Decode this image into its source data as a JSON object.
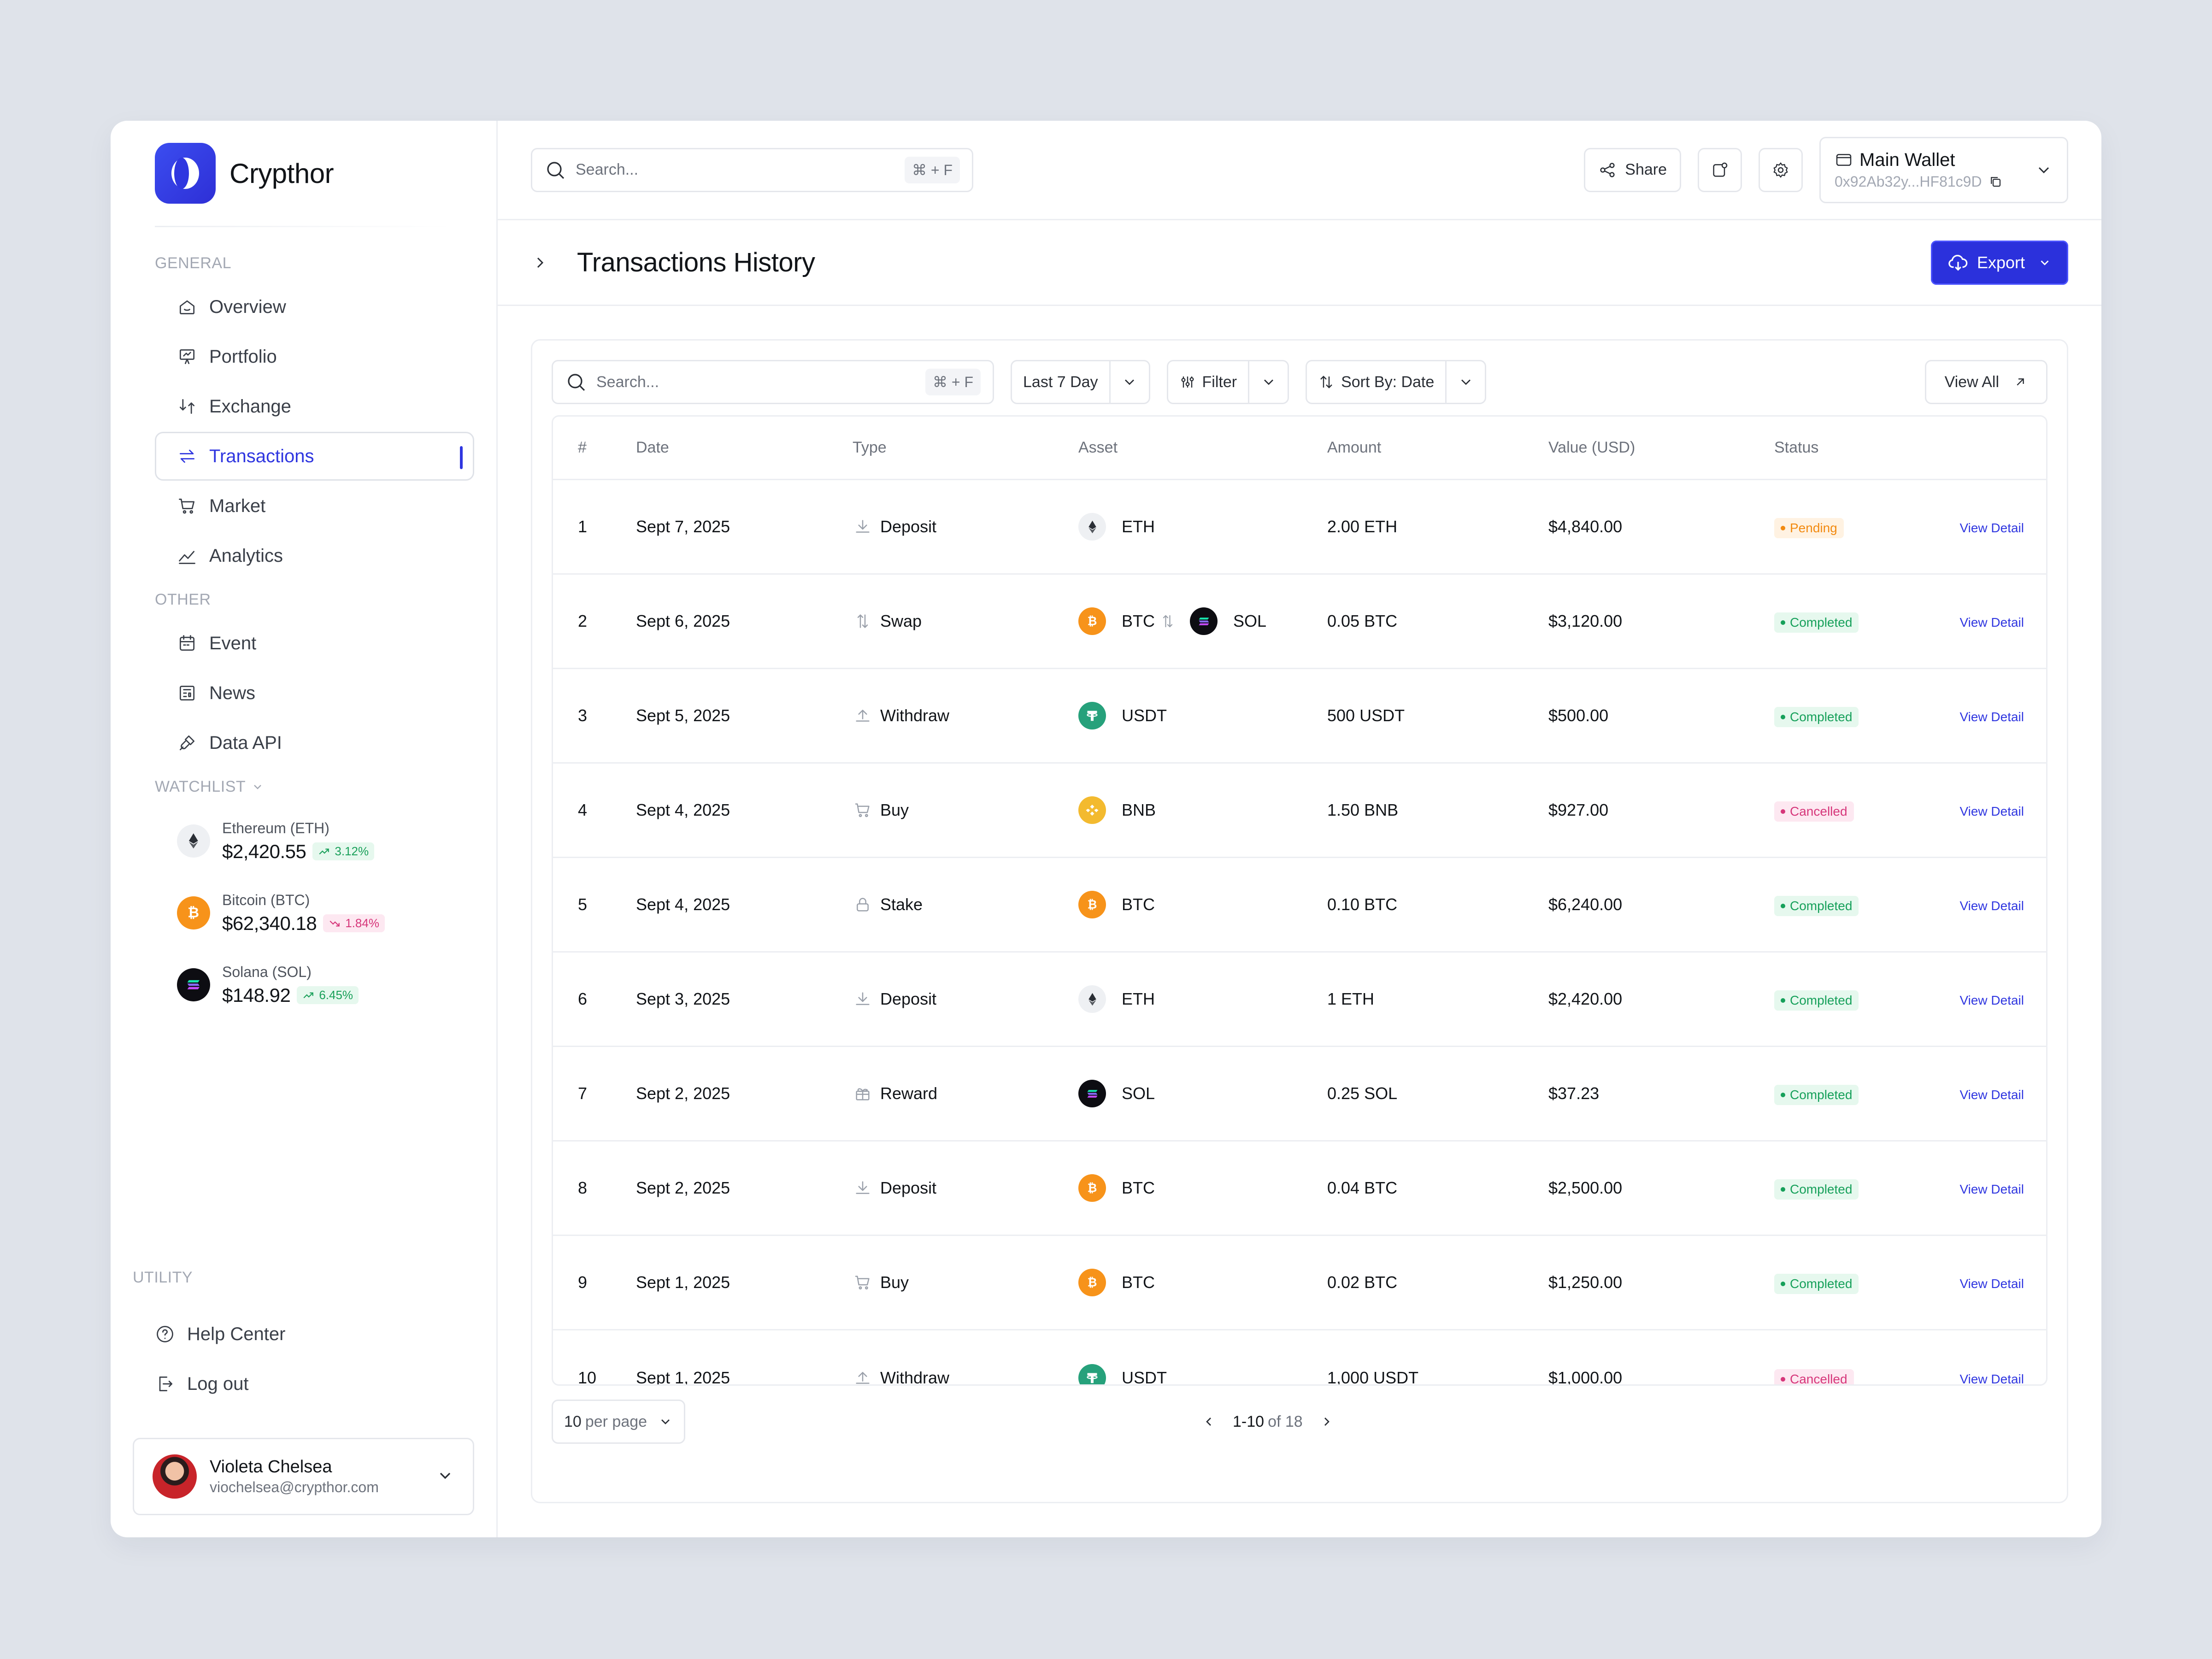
{
  "brand": {
    "name": "Crypthor"
  },
  "sidebar": {
    "general_label": "GENERAL",
    "general_items": [
      {
        "label": "Overview",
        "icon": "home-icon",
        "active": false
      },
      {
        "label": "Portfolio",
        "icon": "presentation-icon",
        "active": false
      },
      {
        "label": "Exchange",
        "icon": "exchange-icon",
        "active": false
      },
      {
        "label": "Transactions",
        "icon": "transfer-icon",
        "active": true
      },
      {
        "label": "Market",
        "icon": "cart-icon",
        "active": false
      },
      {
        "label": "Analytics",
        "icon": "chart-line-icon",
        "active": false
      }
    ],
    "other_label": "OTHER",
    "other_items": [
      {
        "label": "Event",
        "icon": "calendar-icon"
      },
      {
        "label": "News",
        "icon": "newspaper-icon"
      },
      {
        "label": "Data API",
        "icon": "plug-icon"
      }
    ],
    "watchlist_label": "WATCHLIST",
    "watchlist": [
      {
        "name": "Ethereum (ETH)",
        "price": "$2,420.55",
        "change": "3.12%",
        "direction": "up",
        "coin": "eth"
      },
      {
        "name": "Bitcoin (BTC)",
        "price": "$62,340.18",
        "change": "1.84%",
        "direction": "down",
        "coin": "btc"
      },
      {
        "name": "Solana (SOL)",
        "price": "$148.92",
        "change": "6.45%",
        "direction": "up",
        "coin": "sol"
      }
    ],
    "utility_label": "UTILITY",
    "utility_items": [
      {
        "label": "Help Center",
        "icon": "help-icon"
      },
      {
        "label": "Log out",
        "icon": "logout-icon"
      }
    ],
    "user": {
      "name": "Violeta Chelsea",
      "email": "viochelsea@crypthor.com"
    }
  },
  "topbar": {
    "search_placeholder": "Search...",
    "search_shortcut": "⌘ + F",
    "share_label": "Share",
    "wallet_title": "Main Wallet",
    "wallet_address": "0x92Ab32y...HF81c9D"
  },
  "page": {
    "title": "Transactions History",
    "export_label": "Export"
  },
  "toolbar": {
    "search_placeholder": "Search...",
    "search_shortcut": "⌘ + F",
    "range_label": "Last 7 Day",
    "filter_label": "Filter",
    "sort_label": "Sort By: Date",
    "view_all_label": "View All"
  },
  "table": {
    "headers": {
      "num": "#",
      "date": "Date",
      "type": "Type",
      "asset": "Asset",
      "amount": "Amount",
      "value": "Value (USD)",
      "status": "Status"
    },
    "action_label": "View Detail",
    "rows": [
      {
        "num": "1",
        "date": "Sept 7, 2025",
        "type": "Deposit",
        "assets": [
          "ETH"
        ],
        "amount": "2.00 ETH",
        "value": "$4,840.00",
        "status": "Pending"
      },
      {
        "num": "2",
        "date": "Sept 6, 2025",
        "type": "Swap",
        "assets": [
          "BTC",
          "SOL"
        ],
        "amount": "0.05 BTC",
        "value": "$3,120.00",
        "status": "Completed"
      },
      {
        "num": "3",
        "date": "Sept 5, 2025",
        "type": "Withdraw",
        "assets": [
          "USDT"
        ],
        "amount": "500 USDT",
        "value": "$500.00",
        "status": "Completed"
      },
      {
        "num": "4",
        "date": "Sept 4, 2025",
        "type": "Buy",
        "assets": [
          "BNB"
        ],
        "amount": "1.50 BNB",
        "value": "$927.00",
        "status": "Cancelled"
      },
      {
        "num": "5",
        "date": "Sept 4, 2025",
        "type": "Stake",
        "assets": [
          "BTC"
        ],
        "amount": "0.10 BTC",
        "value": "$6,240.00",
        "status": "Completed"
      },
      {
        "num": "6",
        "date": "Sept 3, 2025",
        "type": "Deposit",
        "assets": [
          "ETH"
        ],
        "amount": "1 ETH",
        "value": "$2,420.00",
        "status": "Completed"
      },
      {
        "num": "7",
        "date": "Sept 2, 2025",
        "type": "Reward",
        "assets": [
          "SOL"
        ],
        "amount": "0.25 SOL",
        "value": "$37.23",
        "status": "Completed"
      },
      {
        "num": "8",
        "date": "Sept 2, 2025",
        "type": "Deposit",
        "assets": [
          "BTC"
        ],
        "amount": "0.04 BTC",
        "value": "$2,500.00",
        "status": "Completed"
      },
      {
        "num": "9",
        "date": "Sept 1, 2025",
        "type": "Buy",
        "assets": [
          "BTC"
        ],
        "amount": "0.02 BTC",
        "value": "$1,250.00",
        "status": "Completed"
      },
      {
        "num": "10",
        "date": "Sept 1, 2025",
        "type": "Withdraw",
        "assets": [
          "USDT"
        ],
        "amount": "1,000 USDT",
        "value": "$1,000.00",
        "status": "Cancelled"
      }
    ]
  },
  "pagination": {
    "per_page_value": "10",
    "per_page_suffix": "per page",
    "range": "1-10",
    "of_total": "of 18"
  },
  "colors": {
    "accent": "#2f36e0",
    "eth": "#eef0f3",
    "btc": "#f7931a",
    "sol": "#0d0d12",
    "usdt": "#26a17b",
    "bnb": "#f3ba2f"
  }
}
